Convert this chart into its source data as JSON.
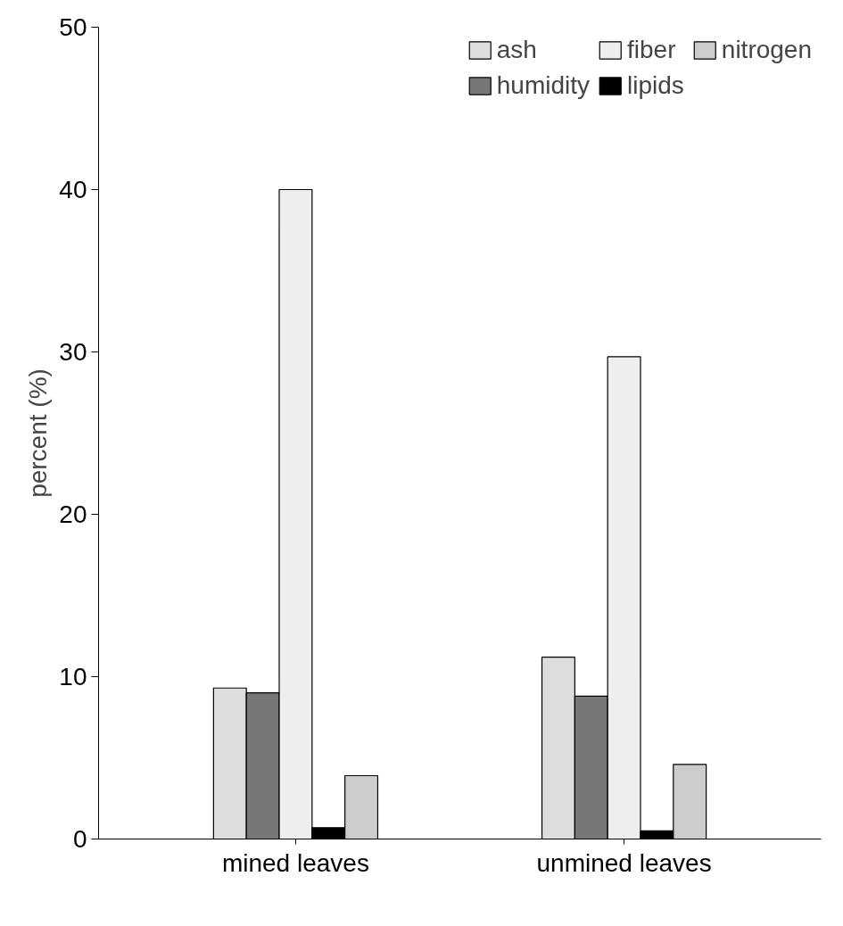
{
  "chart_data": {
    "type": "bar",
    "ylabel": "percent (%)",
    "categories": [
      "mined leaves",
      "unmined leaves"
    ],
    "series": [
      {
        "name": "ash",
        "color": "#dddddd",
        "values": [
          9.3,
          11.2
        ]
      },
      {
        "name": "humidity",
        "color": "#777777",
        "values": [
          9.0,
          8.8
        ]
      },
      {
        "name": "fiber",
        "color": "#eeeeee",
        "values": [
          40.0,
          29.7
        ]
      },
      {
        "name": "lipids",
        "color": "#000000",
        "values": [
          0.7,
          0.5
        ]
      },
      {
        "name": "nitrogen",
        "color": "#cccccc",
        "values": [
          3.9,
          4.6
        ]
      }
    ],
    "ylim": [
      0,
      50
    ],
    "yticks": [
      0,
      10,
      20,
      30,
      40,
      50
    ],
    "grid": false,
    "legend": "top right"
  }
}
